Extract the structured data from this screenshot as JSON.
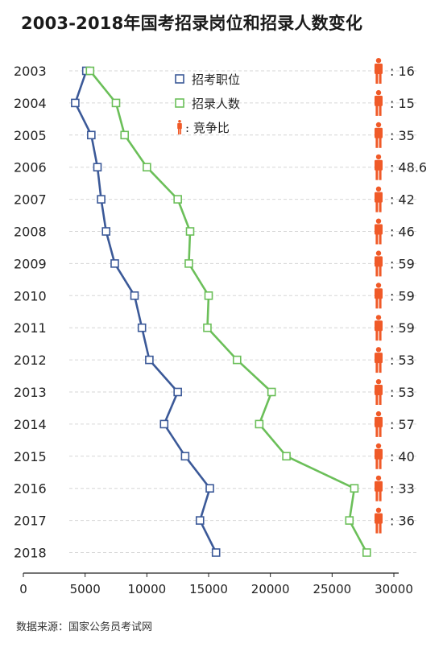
{
  "title": "2003-2018年国考招录岗位和招录人数变化",
  "source": "数据来源：国家公务员考试网",
  "chart_data": {
    "type": "line",
    "orientation": "horizontal-values",
    "categories": [
      "2003",
      "2004",
      "2005",
      "2006",
      "2007",
      "2008",
      "2009",
      "2010",
      "2011",
      "2012",
      "2013",
      "2014",
      "2015",
      "2016",
      "2017",
      "2018"
    ],
    "series": [
      {
        "name": "招考职位",
        "color": "#3b5998",
        "values": [
          5100,
          4200,
          5500,
          6000,
          6300,
          6700,
          7400,
          9000,
          9600,
          10200,
          12500,
          11400,
          13100,
          15100,
          14300,
          15600
        ]
      },
      {
        "name": "招录人数",
        "color": "#6bbf59",
        "values": [
          5400,
          7500,
          8200,
          10000,
          12500,
          13500,
          13400,
          15000,
          14900,
          17300,
          20100,
          19100,
          21300,
          26800,
          26400,
          27800
        ]
      }
    ],
    "ratio_label": "竞争比",
    "ratio_color": "#f05a28",
    "ratios": [
      {
        "year": "2003",
        "ratio": ": 16"
      },
      {
        "year": "2004",
        "ratio": ": 15"
      },
      {
        "year": "2005",
        "ratio": ": 35"
      },
      {
        "year": "2006",
        "ratio": ": 48.6"
      },
      {
        "year": "2007",
        "ratio": ": 42"
      },
      {
        "year": "2008",
        "ratio": ": 46"
      },
      {
        "year": "2009",
        "ratio": ": 59"
      },
      {
        "year": "2010",
        "ratio": ": 59"
      },
      {
        "year": "2011",
        "ratio": ": 59"
      },
      {
        "year": "2012",
        "ratio": ": 53"
      },
      {
        "year": "2013",
        "ratio": ": 53"
      },
      {
        "year": "2014",
        "ratio": ": 57"
      },
      {
        "year": "2015",
        "ratio": ": 40"
      },
      {
        "year": "2016",
        "ratio": ": 33"
      },
      {
        "year": "2017",
        "ratio": ": 36"
      }
    ],
    "xlim": [
      0,
      30000
    ],
    "xticks": [
      "0",
      "5000",
      "10000",
      "15000",
      "20000",
      "25000",
      "30000"
    ],
    "xtick_values": [
      0,
      5000,
      10000,
      15000,
      20000,
      25000,
      30000
    ],
    "grid": "dashed horizontal",
    "legend": "top-left"
  }
}
